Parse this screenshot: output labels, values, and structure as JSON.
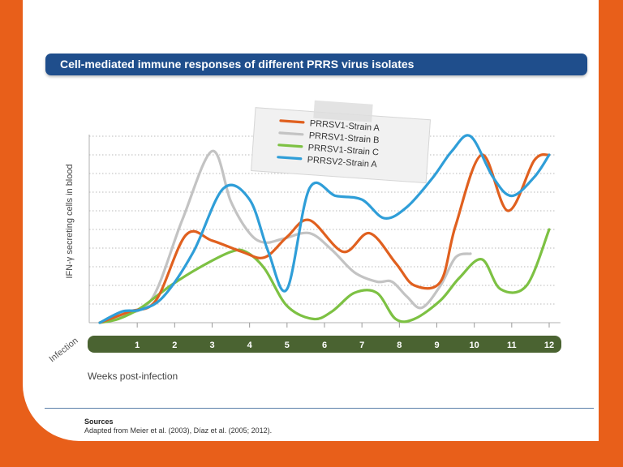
{
  "title": "Cell-mediated immune responses of different PRRS virus isolates",
  "colors": {
    "background": "#e85f1a",
    "title_bar": "#1f4e8c",
    "axis_bar": "#4a6331",
    "strainA": "#e0601f",
    "strainB": "#c3c3c3",
    "strainC": "#7dc143",
    "v2strainA": "#2f9ed8"
  },
  "chart_data": {
    "type": "line",
    "title": "Cell-mediated immune responses of different PRRS virus isolates",
    "xlabel": "Weeks post-infection",
    "ylabel": "IFN-γ secreting cells in blood",
    "x_start_label": "Infection",
    "x_tick_labels": [
      "1",
      "2",
      "3",
      "4",
      "5",
      "6",
      "7",
      "8",
      "9",
      "10",
      "11",
      "12"
    ],
    "xlim": [
      0,
      12.3
    ],
    "ylim": [
      0,
      10
    ],
    "grid": true,
    "legend_position": "top-center",
    "series": [
      {
        "name": "PRRSV1-Strain A",
        "x": [
          0,
          0.8,
          1.5,
          2.3,
          3.0,
          3.8,
          4.4,
          5.0,
          5.6,
          6.5,
          7.2,
          7.9,
          8.4,
          9.1,
          9.5,
          10.2,
          10.9,
          11.6,
          12.0
        ],
        "y": [
          0,
          0.6,
          1.2,
          4.7,
          4.4,
          3.8,
          3.5,
          4.6,
          5.5,
          3.8,
          4.8,
          3.2,
          2.0,
          2.2,
          5.2,
          9.0,
          6.0,
          8.7,
          9.0
        ]
      },
      {
        "name": "PRRSV1-Strain B",
        "x": [
          0,
          0.6,
          1.4,
          2.2,
          3.0,
          3.5,
          4.0,
          4.4,
          4.9,
          5.6,
          6.2,
          6.8,
          7.4,
          7.8,
          8.2,
          8.6,
          9.1,
          9.5,
          9.9
        ],
        "y": [
          0,
          0.4,
          1.3,
          5.5,
          9.2,
          6.5,
          4.8,
          4.3,
          4.5,
          4.8,
          3.9,
          2.7,
          2.2,
          2.2,
          1.4,
          0.8,
          2.0,
          3.5,
          3.7
        ]
      },
      {
        "name": "PRRSV1-Strain C",
        "x": [
          0,
          0.5,
          1.1,
          1.9,
          2.7,
          3.5,
          3.9,
          4.4,
          5.0,
          5.7,
          6.2,
          6.8,
          7.4,
          7.9,
          8.4,
          9.1,
          9.6,
          10.2,
          10.7,
          11.4,
          12.0
        ],
        "y": [
          0,
          0.2,
          0.8,
          2.0,
          3.0,
          3.8,
          3.8,
          2.9,
          0.9,
          0.2,
          0.6,
          1.6,
          1.6,
          0.2,
          0.2,
          1.2,
          2.4,
          3.4,
          1.8,
          2.0,
          5.0
        ]
      },
      {
        "name": "PRRSV2-Strain A",
        "x": [
          0,
          0.6,
          1.1,
          1.7,
          2.5,
          3.3,
          4.0,
          4.5,
          5.0,
          5.6,
          6.3,
          7.0,
          7.6,
          8.2,
          8.9,
          9.4,
          9.9,
          10.5,
          11.0,
          11.6,
          12.0
        ],
        "y": [
          0,
          0.6,
          0.7,
          1.4,
          3.8,
          7.2,
          6.6,
          3.8,
          1.8,
          7.2,
          6.8,
          6.6,
          5.6,
          6.2,
          7.8,
          9.2,
          10.0,
          7.8,
          6.8,
          7.8,
          9.0
        ]
      }
    ]
  },
  "sources": {
    "heading": "Sources",
    "text": "Adapted from Meier et al. (2003), Díaz et al. (2005; 2012)."
  }
}
